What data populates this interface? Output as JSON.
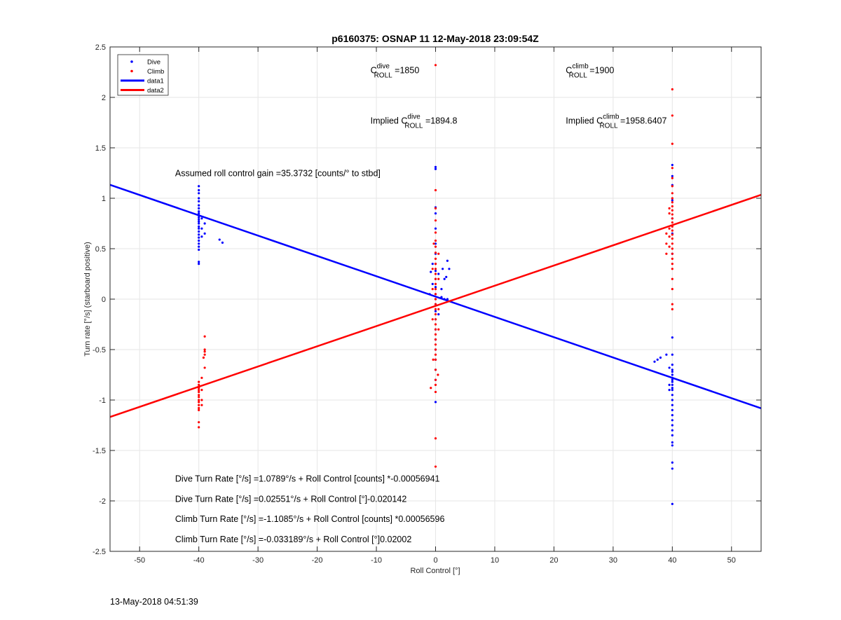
{
  "chart_data": {
    "type": "scatter",
    "title": "p6160375: OSNAP 11 12-May-2018 23:09:54Z",
    "xlabel": "Roll Control [°]",
    "ylabel": "Turn rate [°/s] (starboard positive)",
    "xlim": [
      -55,
      55
    ],
    "ylim": [
      -2.5,
      2.5
    ],
    "xticks": [
      -50,
      -40,
      -30,
      -20,
      -10,
      0,
      10,
      20,
      30,
      40,
      50
    ],
    "yticks": [
      -2.5,
      -2,
      -1.5,
      -1,
      -0.5,
      0,
      0.5,
      1,
      1.5,
      2,
      2.5
    ],
    "grid": true,
    "legend_position": "top-left",
    "legend": [
      {
        "label": "Dive",
        "kind": "marker",
        "color": "#0000ff"
      },
      {
        "label": "Climb",
        "kind": "marker",
        "color": "#ff0000"
      },
      {
        "label": "data1",
        "kind": "line",
        "color": "#0000ff"
      },
      {
        "label": "data2",
        "kind": "line",
        "color": "#ff0000"
      }
    ],
    "series": [
      {
        "name": "Dive",
        "color": "#0000ff",
        "points": [
          [
            -40,
            1.12
          ],
          [
            -40,
            1.08
          ],
          [
            -40,
            1.05
          ],
          [
            -40,
            1.0
          ],
          [
            -40,
            0.97
          ],
          [
            -40,
            0.93
          ],
          [
            -40,
            0.9
          ],
          [
            -40,
            0.87
          ],
          [
            -40,
            0.85
          ],
          [
            -40,
            0.83
          ],
          [
            -40,
            0.81
          ],
          [
            -40,
            0.79
          ],
          [
            -40,
            0.77
          ],
          [
            -40,
            0.75
          ],
          [
            -40,
            0.72
          ],
          [
            -40,
            0.7
          ],
          [
            -40,
            0.67
          ],
          [
            -40,
            0.64
          ],
          [
            -40,
            0.61
          ],
          [
            -40,
            0.58
          ],
          [
            -40,
            0.55
          ],
          [
            -40,
            0.52
          ],
          [
            -40,
            0.49
          ],
          [
            -40,
            0.37
          ],
          [
            -40,
            0.35
          ],
          [
            -39.5,
            0.8
          ],
          [
            -39.5,
            0.7
          ],
          [
            -39.5,
            0.62
          ],
          [
            -39,
            0.75
          ],
          [
            -39,
            0.65
          ],
          [
            -36.5,
            0.59
          ],
          [
            -36,
            0.56
          ],
          [
            0,
            1.31
          ],
          [
            0,
            1.29
          ],
          [
            0,
            0.91
          ],
          [
            0,
            0.85
          ],
          [
            0,
            0.7
          ],
          [
            0,
            0.55
          ],
          [
            0,
            0.45
          ],
          [
            0,
            0.35
          ],
          [
            0,
            0.28
          ],
          [
            0,
            0.2
          ],
          [
            0,
            0.12
          ],
          [
            0,
            0.05
          ],
          [
            0,
            0.0
          ],
          [
            0,
            -0.05
          ],
          [
            0,
            -0.12
          ],
          [
            0,
            -0.2
          ],
          [
            0,
            -0.3
          ],
          [
            0,
            -0.4
          ],
          [
            0,
            -0.5
          ],
          [
            0,
            -0.6
          ],
          [
            0,
            -0.7
          ],
          [
            0,
            -0.8
          ],
          [
            0,
            -1.02
          ],
          [
            -0.5,
            0.35
          ],
          [
            -0.5,
            0.15
          ],
          [
            0.5,
            0.25
          ],
          [
            0.5,
            -0.15
          ],
          [
            -0.8,
            0.27
          ],
          [
            1.2,
            0.3
          ],
          [
            1.5,
            0.2
          ],
          [
            1.8,
            0.22
          ],
          [
            2,
            0.38
          ],
          [
            2.3,
            0.3
          ],
          [
            1.0,
            0.1
          ],
          [
            -1.0,
            0.05
          ],
          [
            1.0,
            0.02
          ],
          [
            1.5,
            0.0
          ],
          [
            2.0,
            0.0
          ],
          [
            40,
            1.33
          ],
          [
            40,
            1.22
          ],
          [
            40,
            1.13
          ],
          [
            40,
            0.98
          ],
          [
            40,
            0.8
          ],
          [
            40,
            0.65
          ],
          [
            40,
            0.45
          ],
          [
            40,
            -0.38
          ],
          [
            40,
            -0.55
          ],
          [
            40,
            -0.65
          ],
          [
            40,
            -0.7
          ],
          [
            40,
            -0.72
          ],
          [
            40,
            -0.75
          ],
          [
            40,
            -0.78
          ],
          [
            40,
            -0.8
          ],
          [
            40,
            -0.82
          ],
          [
            40,
            -0.85
          ],
          [
            40,
            -0.88
          ],
          [
            40,
            -0.9
          ],
          [
            40,
            -0.95
          ],
          [
            40,
            -1.0
          ],
          [
            40,
            -1.05
          ],
          [
            40,
            -1.1
          ],
          [
            40,
            -1.15
          ],
          [
            40,
            -1.2
          ],
          [
            40,
            -1.25
          ],
          [
            40,
            -1.3
          ],
          [
            40,
            -1.35
          ],
          [
            40,
            -1.42
          ],
          [
            40,
            -1.45
          ],
          [
            40,
            -1.62
          ],
          [
            40,
            -1.68
          ],
          [
            40,
            -2.03
          ],
          [
            39.5,
            -0.85
          ],
          [
            39.5,
            -0.9
          ],
          [
            37,
            -0.62
          ],
          [
            37.5,
            -0.6
          ],
          [
            38,
            -0.58
          ],
          [
            39,
            -0.55
          ],
          [
            39.5,
            -0.68
          ]
        ]
      },
      {
        "name": "Climb",
        "color": "#ff0000",
        "points": [
          [
            -40,
            -0.82
          ],
          [
            -40,
            -0.85
          ],
          [
            -40,
            -0.88
          ],
          [
            -40,
            -0.9
          ],
          [
            -40,
            -0.92
          ],
          [
            -40,
            -0.95
          ],
          [
            -40,
            -0.97
          ],
          [
            -40,
            -1.0
          ],
          [
            -40,
            -1.02
          ],
          [
            -40,
            -1.05
          ],
          [
            -40,
            -1.08
          ],
          [
            -40,
            -1.1
          ],
          [
            -40,
            -1.22
          ],
          [
            -40,
            -1.27
          ],
          [
            -39.5,
            -0.78
          ],
          [
            -39.5,
            -0.9
          ],
          [
            -39.5,
            -1.0
          ],
          [
            -39.5,
            -1.05
          ],
          [
            -39,
            -0.37
          ],
          [
            -39,
            -0.5
          ],
          [
            -39,
            -0.52
          ],
          [
            -39,
            -0.55
          ],
          [
            -39,
            -0.68
          ],
          [
            -39.2,
            -0.58
          ],
          [
            0,
            2.32
          ],
          [
            0,
            1.08
          ],
          [
            0,
            0.9
          ],
          [
            0,
            0.78
          ],
          [
            0,
            0.66
          ],
          [
            0,
            0.58
          ],
          [
            0,
            0.52
          ],
          [
            0,
            0.46
          ],
          [
            0,
            0.4
          ],
          [
            0,
            0.35
          ],
          [
            0,
            0.3
          ],
          [
            0,
            0.25
          ],
          [
            0,
            0.2
          ],
          [
            0,
            0.15
          ],
          [
            0,
            0.1
          ],
          [
            0,
            0.05
          ],
          [
            0,
            0.0
          ],
          [
            0,
            -0.05
          ],
          [
            0,
            -0.1
          ],
          [
            0,
            -0.15
          ],
          [
            0,
            -0.2
          ],
          [
            0,
            -0.25
          ],
          [
            0,
            -0.3
          ],
          [
            0,
            -0.35
          ],
          [
            0,
            -0.4
          ],
          [
            0,
            -0.45
          ],
          [
            0,
            -0.5
          ],
          [
            0,
            -0.55
          ],
          [
            0,
            -0.6
          ],
          [
            0,
            -0.7
          ],
          [
            0,
            -0.8
          ],
          [
            0,
            -0.85
          ],
          [
            0,
            -0.92
          ],
          [
            0,
            -1.38
          ],
          [
            0,
            -1.66
          ],
          [
            -0.5,
            0.3
          ],
          [
            -0.5,
            0.1
          ],
          [
            -0.5,
            -0.2
          ],
          [
            0.5,
            0.45
          ],
          [
            0.5,
            -0.1
          ],
          [
            0.5,
            -0.3
          ],
          [
            -0.8,
            -0.88
          ],
          [
            0.4,
            -0.75
          ],
          [
            -0.4,
            -0.6
          ],
          [
            0.5,
            0.2
          ],
          [
            -0.3,
            0.55
          ],
          [
            40,
            2.08
          ],
          [
            40,
            1.82
          ],
          [
            40,
            1.54
          ],
          [
            40,
            1.3
          ],
          [
            40,
            1.2
          ],
          [
            40,
            1.12
          ],
          [
            40,
            1.05
          ],
          [
            40,
            1.0
          ],
          [
            40,
            0.96
          ],
          [
            40,
            0.92
          ],
          [
            40,
            0.88
          ],
          [
            40,
            0.84
          ],
          [
            40,
            0.8
          ],
          [
            40,
            0.76
          ],
          [
            40,
            0.72
          ],
          [
            40,
            0.68
          ],
          [
            40,
            0.64
          ],
          [
            40,
            0.6
          ],
          [
            40,
            0.55
          ],
          [
            40,
            0.5
          ],
          [
            40,
            0.45
          ],
          [
            40,
            0.4
          ],
          [
            40,
            0.35
          ],
          [
            40,
            0.3
          ],
          [
            40,
            0.2
          ],
          [
            40,
            0.1
          ],
          [
            40,
            -0.05
          ],
          [
            40,
            -0.1
          ],
          [
            39.5,
            0.85
          ],
          [
            39.5,
            0.7
          ],
          [
            39.5,
            0.62
          ],
          [
            39.5,
            0.52
          ],
          [
            39,
            0.65
          ],
          [
            39,
            0.55
          ],
          [
            39,
            0.45
          ],
          [
            39.5,
            0.9
          ]
        ]
      },
      {
        "name": "data1",
        "color": "#0000ff",
        "kind": "line",
        "x": [
          -55,
          55
        ],
        "y": [
          1.133,
          -1.082
        ]
      },
      {
        "name": "data2",
        "color": "#ff0000",
        "kind": "line",
        "x": [
          -55,
          55
        ],
        "y": [
          -1.168,
          1.034
        ]
      }
    ],
    "annotations": [
      {
        "key": "c_dive",
        "x": -11,
        "y": 2.24,
        "base": "C",
        "sup": "dive",
        "sub": "ROLL",
        "tail": " =1850"
      },
      {
        "key": "c_climb",
        "x": 22,
        "y": 2.24,
        "base": "C",
        "sup": "climb",
        "sub": "ROLL",
        "tail": " =1900"
      },
      {
        "key": "implied_dive",
        "x": -11,
        "y": 1.74,
        "base": "Implied C",
        "sup": "dive",
        "sub": "ROLL",
        "tail": " =1894.8"
      },
      {
        "key": "implied_climb",
        "x": 22,
        "y": 1.74,
        "base": "Implied C",
        "sup": "climb",
        "sub": "ROLL",
        "tail": " =1958.6407"
      },
      {
        "key": "gain",
        "x": -44,
        "y": 1.22,
        "text": "Assumed roll control gain =35.3732 [counts/° to stbd]"
      },
      {
        "key": "dive_counts",
        "x": -44,
        "y": -1.81,
        "text": "Dive Turn Rate [°/s] =1.0789°/s + Roll Control [counts] *-0.00056941"
      },
      {
        "key": "dive_deg",
        "x": -44,
        "y": -2.01,
        "text": "Dive Turn Rate [°/s] =0.02551°/s + Roll Control [°]-0.020142"
      },
      {
        "key": "climb_counts",
        "x": -44,
        "y": -2.21,
        "text": "Climb Turn Rate [°/s] =-1.1085°/s + Roll Control [counts] *0.00056596"
      },
      {
        "key": "climb_deg",
        "x": -44,
        "y": -2.41,
        "text": "Climb Turn Rate [°/s] =-0.033189°/s + Roll Control [°]0.02002"
      }
    ]
  },
  "footer": {
    "timestamp": "13-May-2018 04:51:39"
  }
}
